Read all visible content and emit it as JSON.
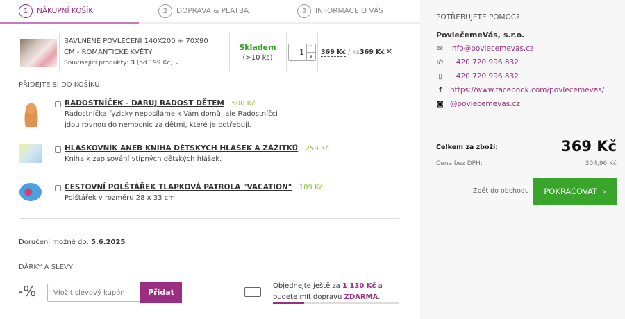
{
  "steps": [
    {
      "num": "1",
      "label": "NÁKUPNÍ KOŠÍK",
      "active": true
    },
    {
      "num": "2",
      "label": "DOPRAVA & PLATBA"
    },
    {
      "num": "3",
      "label": "INFORMACE O VÁS"
    }
  ],
  "cart_item": {
    "title": "BAVLNĚNÉ POVLEČENÍ 140X200 + 70X90 CM - ROMANTICKÉ KVĚTY",
    "related_prefix": "Související produkty:",
    "related_count": "3",
    "related_from": "(od 199 Kč)",
    "stock": "Skladem",
    "stock_qty": "(>10 ks)",
    "quantity": "1",
    "unit_price": "369 Kč",
    "unit": "/ ks",
    "total": "369 Kč"
  },
  "addons": {
    "heading": "PŘIDEJTE SI DO KOŠÍKU",
    "items": [
      {
        "title": "RADOSTNÍČEK - DARUJ RADOST DĚTEM",
        "price": "500 Kč",
        "desc": "Radostníčka fyzicky neposíláme k Vám domů, ale Radostníčci jdou rovnou do nemocnic za dětmi, které je potřebují."
      },
      {
        "title": "HLÁŠKOVNÍK ANEB KNIHA DĚTSKÝCH HLÁŠEK A ZÁŽITKŮ",
        "price": "259 Kč",
        "desc": "Kniha k zapisování vtipných dětských hlášek."
      },
      {
        "title": "CESTOVNÍ POLŠTÁŘEK TLAPKOVÁ PATROLA \"VACATION\"",
        "price": "189 Kč",
        "desc": "Polštářek v rozměru 28 x 33 cm."
      }
    ]
  },
  "delivery": {
    "label": "Doručení možné do:",
    "date": "5.6.2025"
  },
  "discounts": {
    "heading": "DÁRKY A SLEVY",
    "symbol": "-%",
    "placeholder": "Vložit slevový kupón",
    "button": "Přidat"
  },
  "free_shipping": {
    "text1": "Objednejte ještě za",
    "amount": "1 130 Kč",
    "text2": "a",
    "text3": "budete mít dopravu",
    "free": "ZDARMA",
    "suffix": ".",
    "progress_percent": 25
  },
  "help": {
    "heading": "POTŘEBUJETE POMOC?",
    "company": "PovlečemeVás, s.r.o.",
    "contacts": [
      {
        "icon": "envelope-icon",
        "text": "info@povlecemevas.cz"
      },
      {
        "icon": "phone-icon",
        "text": "+420 720 996 832"
      },
      {
        "icon": "mobile-icon",
        "text": "+420 720 996 832"
      },
      {
        "icon": "facebook-icon",
        "text": "https://www.facebook.com/povlecemevas/"
      },
      {
        "icon": "instagram-icon",
        "text": "@povlecemevas.cz"
      }
    ]
  },
  "summary": {
    "total_label": "Celkem za zboží:",
    "total": "369 Kč",
    "net_label": "Cena bez DPH:",
    "net": "304,96 Kč",
    "back": "Zpět do obchodu",
    "continue": "POKRAČOVAT"
  },
  "colors": {
    "brand": "#9b2e82",
    "green": "#3aa52b",
    "stock": "#2e9e1f"
  }
}
